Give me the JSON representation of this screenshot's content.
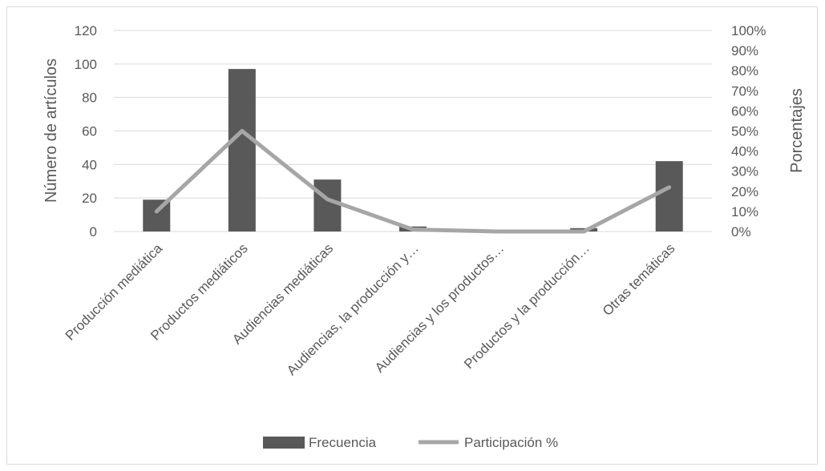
{
  "chart_data": {
    "type": "bar",
    "categories": [
      "Producción mediática",
      "Productos mediáticos",
      "Audiencias mediáticas",
      "Audiencias, la producción y…",
      "Audiencias y los productos…",
      "Productos y la producción…",
      "Otras temáticas"
    ],
    "series": [
      {
        "name": "Frecuencia",
        "type": "bar",
        "axis": "left",
        "values": [
          19,
          97,
          31,
          3,
          0,
          2,
          42
        ],
        "color": "#595959"
      },
      {
        "name": "Participación %",
        "type": "line",
        "axis": "right",
        "values": [
          10,
          50,
          16,
          1,
          0,
          0,
          22
        ],
        "color": "#a6a6a6"
      }
    ],
    "ylabel": "Número de artículos",
    "y2label": "Porcentajes",
    "ylim": [
      0,
      120
    ],
    "yticks": [
      "0",
      "20",
      "40",
      "60",
      "80",
      "100",
      "120"
    ],
    "y2lim": [
      0,
      100
    ],
    "y2ticks": [
      "0%",
      "10%",
      "20%",
      "30%",
      "40%",
      "50%",
      "60%",
      "70%",
      "80%",
      "90%",
      "100%"
    ],
    "grid": true,
    "legend": "bottom"
  }
}
